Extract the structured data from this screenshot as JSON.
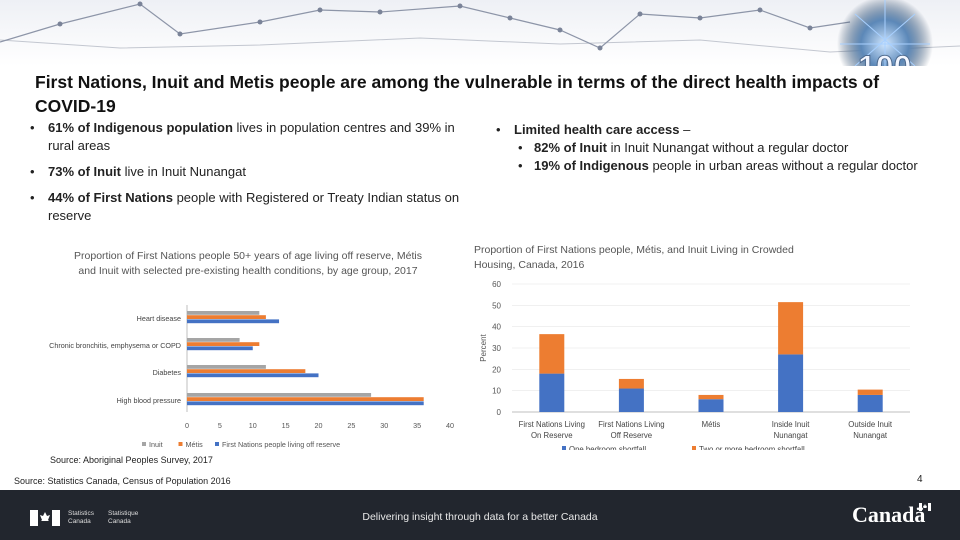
{
  "slide": {
    "title": "First Nations, Inuit and Metis people are among the vulnerable in terms of the direct health impacts of COVID-19",
    "badge": "100",
    "page_number": "4"
  },
  "left_bullets": [
    {
      "bold": "61% of Indigenous population",
      "rest": " lives in population centres and 39% in rural areas"
    },
    {
      "bold": "73% of Inuit",
      "rest": " live in Inuit Nunangat"
    },
    {
      "bold": "44% of First Nations",
      "rest": " people with Registered or Treaty Indian status on reserve"
    }
  ],
  "right_bullets": {
    "bold": "Limited health care access",
    "rest": " –",
    "sub": [
      {
        "bold": "82% of Inuit",
        "rest": " in Inuit Nunangat without a regular doctor"
      },
      {
        "bold": "19% of Indigenous",
        "rest": " people in urban areas without a regular doctor"
      }
    ]
  },
  "chart_data": [
    {
      "type": "bar",
      "orientation": "horizontal",
      "title": "Proportion of First Nations people 50+ years of age living off reserve, Métis and Inuit with selected pre-existing health conditions, by age group, 2017",
      "categories": [
        "Heart disease",
        "Chronic bronchitis, emphysema or COPD",
        "Diabetes",
        "High blood pressure"
      ],
      "series": [
        {
          "name": "Inuit",
          "color": "#a5a5a5",
          "values": [
            11,
            8,
            12,
            28
          ]
        },
        {
          "name": "Métis",
          "color": "#ed7d31",
          "values": [
            12,
            11,
            18,
            36
          ]
        },
        {
          "name": "First Nations people living off reserve",
          "color": "#4472c4",
          "values": [
            14,
            10,
            20,
            36
          ]
        }
      ],
      "xlim": [
        0,
        40
      ],
      "xticks": [
        "0",
        "5",
        "10",
        "15",
        "20",
        "25",
        "30",
        "35",
        "40"
      ],
      "source": "Source: Aboriginal Peoples Survey, 2017"
    },
    {
      "type": "bar",
      "stacked": true,
      "title": "Proportion of First Nations people, Métis, and Inuit Living in Crowded Housing, Canada, 2016",
      "categories": [
        [
          "First Nations Living",
          "On Reserve"
        ],
        [
          "First Nations Living",
          "Off Reserve"
        ],
        [
          "Métis"
        ],
        [
          "Inside Inuit",
          "Nunangat"
        ],
        [
          "Outside Inuit",
          "Nunangat"
        ]
      ],
      "series": [
        {
          "name": "One bedroom shortfall",
          "color": "#4472c4",
          "values": [
            18,
            11,
            6,
            27,
            8
          ]
        },
        {
          "name": "Two or more bedroom shortfall",
          "color": "#ed7d31",
          "values": [
            18.5,
            4.5,
            2,
            24.5,
            2.5
          ]
        }
      ],
      "ylabel": "Percent",
      "ylim": [
        0,
        60
      ],
      "yticks": [
        "0",
        "10",
        "20",
        "30",
        "40",
        "50",
        "60"
      ],
      "source": "Source: Statistics Canada, Census of Population 2016"
    }
  ],
  "footer": {
    "tagline": "Delivering insight through data for a better Canada",
    "statcan_en": [
      "Statistics",
      "Canada"
    ],
    "statcan_fr": [
      "Statistique",
      "Canada"
    ],
    "wordmark": "Canadä"
  }
}
